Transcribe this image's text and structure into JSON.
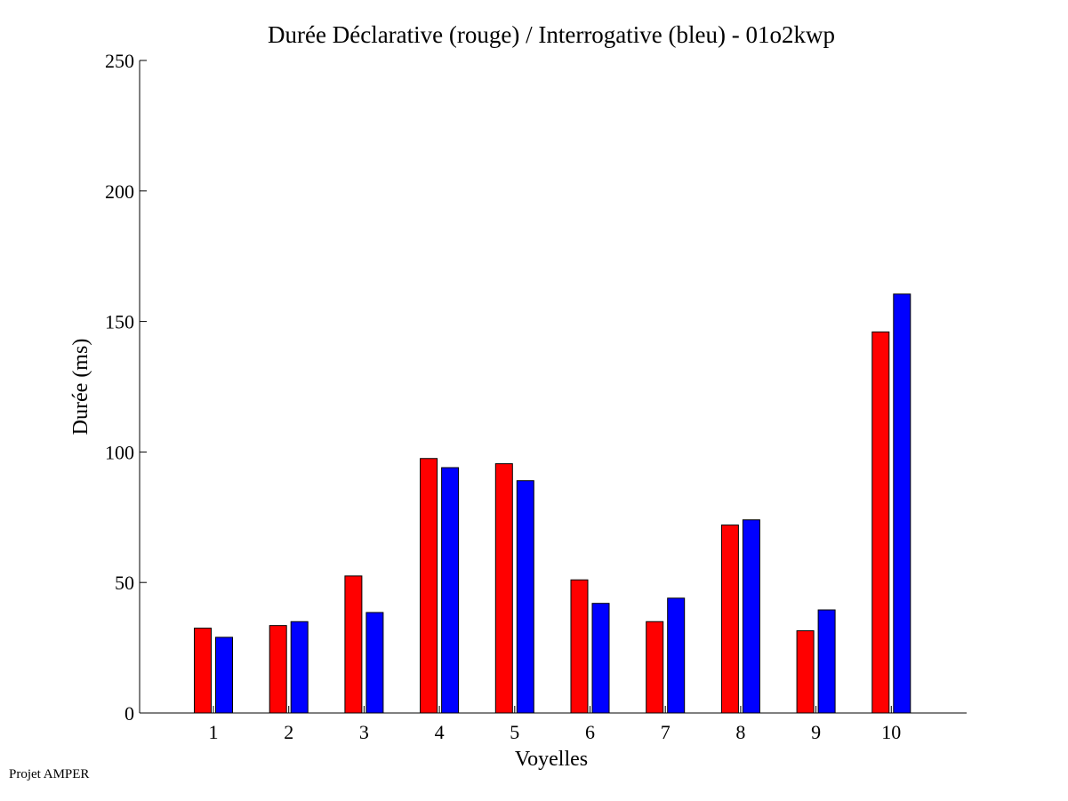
{
  "footer": "Projet AMPER",
  "chart_data": {
    "type": "bar",
    "title": "Durée Déclarative (rouge) / Interrogative (bleu) - 01o2kwp",
    "xlabel": "Voyelles",
    "ylabel": "Durée (ms)",
    "categories": [
      "1",
      "2",
      "3",
      "4",
      "5",
      "6",
      "7",
      "8",
      "9",
      "10"
    ],
    "ylim": [
      0,
      250
    ],
    "yticks": [
      0,
      50,
      100,
      150,
      200,
      250
    ],
    "grid": false,
    "series": [
      {
        "color": "#ff0000",
        "values": [
          32.5,
          33.5,
          52.5,
          97.5,
          95.5,
          51,
          35,
          72,
          31.5,
          146
        ]
      },
      {
        "color": "#0000ff",
        "values": [
          29,
          35,
          38.5,
          94,
          89,
          42,
          44,
          74,
          39.5,
          160.5
        ]
      }
    ]
  }
}
